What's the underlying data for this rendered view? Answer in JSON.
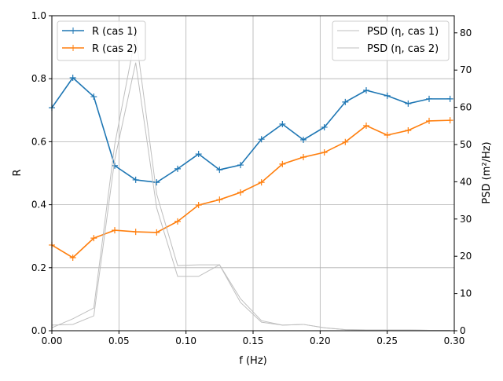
{
  "chart_data": {
    "type": "line",
    "xlabel": "f (Hz)",
    "ylabel": "R",
    "y2label": "PSD (m²/Hz)",
    "xlim": [
      0,
      0.3
    ],
    "ylim": [
      0,
      1
    ],
    "y2lim": [
      0,
      84.6
    ],
    "xticks": [
      "0.00",
      "0.05",
      "0.10",
      "0.15",
      "0.20",
      "0.25",
      "0.30"
    ],
    "yticks": [
      "0.0",
      "0.2",
      "0.4",
      "0.6",
      "0.8",
      "1.0"
    ],
    "y2ticks": [
      "0",
      "10",
      "20",
      "30",
      "40",
      "50",
      "60",
      "70",
      "80"
    ],
    "grid": true,
    "x": [
      0,
      0.015625,
      0.03125,
      0.046875,
      0.0625,
      0.078125,
      0.09375,
      0.109375,
      0.125,
      0.140625,
      0.15625,
      0.171875,
      0.1875,
      0.203125,
      0.21875,
      0.234375,
      0.25,
      0.265625,
      0.28125,
      0.296875
    ],
    "series": [
      {
        "name": "R (cas 1)",
        "axis": "left",
        "color": "#1f77b4",
        "values": [
          0.708,
          0.803,
          0.743,
          0.524,
          0.479,
          0.471,
          0.514,
          0.561,
          0.511,
          0.526,
          0.608,
          0.656,
          0.606,
          0.646,
          0.726,
          0.763,
          0.746,
          0.721,
          0.736,
          0.736
        ]
      },
      {
        "name": "R (cas 2)",
        "axis": "left",
        "color": "#ff7f0e",
        "values": [
          0.272,
          0.232,
          0.294,
          0.319,
          0.314,
          0.312,
          0.347,
          0.399,
          0.416,
          0.439,
          0.471,
          0.529,
          0.551,
          0.566,
          0.599,
          0.651,
          0.621,
          0.636,
          0.666,
          0.668
        ]
      },
      {
        "name": "PSD (η, cas 1)",
        "axis": "right",
        "color": "#bfbfbf",
        "values": [
          0.8,
          3.2,
          6.1,
          50,
          79.5,
          36.7,
          17.5,
          17.7,
          17.7,
          8.6,
          2.7,
          1.5,
          1.7,
          0.8,
          0.3,
          0.2,
          0.2,
          0.2,
          0.1,
          0.1
        ]
      },
      {
        "name": "PSD (η, cas 2)",
        "axis": "right",
        "color": "#bfbfbf",
        "values": [
          1.5,
          1.7,
          4.0,
          46,
          72,
          33,
          14.6,
          14.6,
          17.7,
          7.6,
          2.3,
          1.5,
          1.7,
          0.8,
          0.3,
          0.2,
          0.2,
          0.2,
          0.1,
          0.1
        ]
      }
    ],
    "legend_left": "upper-left",
    "legend_right": "upper-right"
  }
}
